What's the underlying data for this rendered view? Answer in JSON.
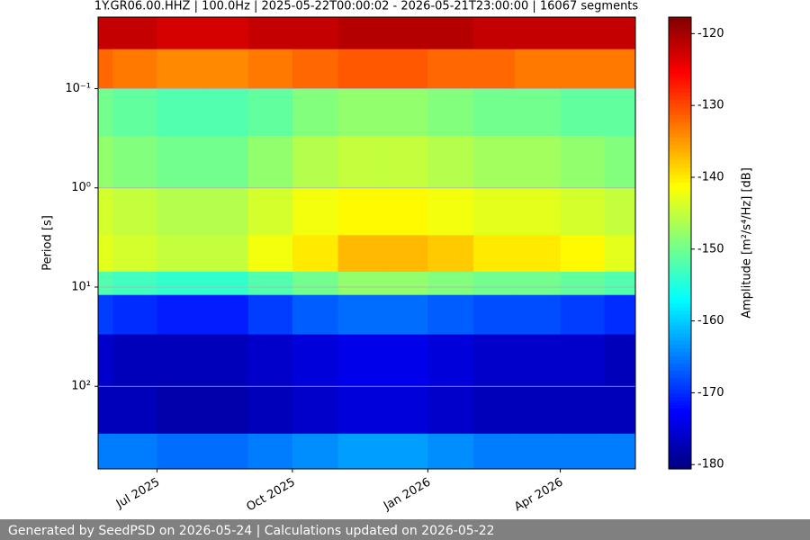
{
  "chart_data": {
    "type": "heatmap",
    "title": "1Y.GR06.00.HHZ | 100.0Hz | 2025-05-22T00:00:02 - 2026-05-21T23:00:00 | 16067 segments",
    "ylabel": "Period [s]",
    "colorbar_label": "Amplitude [m²/s⁴/Hz] [dB]",
    "colormap": "jet",
    "ylog": true,
    "grid": true,
    "x": [
      "2025-05",
      "2025-06",
      "2025-07",
      "2025-08",
      "2025-09",
      "2025-10",
      "2025-11",
      "2025-12",
      "2026-01",
      "2026-02",
      "2026-03",
      "2026-04",
      "2026-05"
    ],
    "xlim": [
      "2025-05-22",
      "2026-05-22"
    ],
    "xticks": [
      {
        "value": "2025-07",
        "label": "Jul 2025"
      },
      {
        "value": "2025-10",
        "label": "Oct 2025"
      },
      {
        "value": "2026-01",
        "label": "Jan 2026"
      },
      {
        "value": "2026-04",
        "label": "Apr 2026"
      }
    ],
    "ylim": [
      0.019,
      680
    ],
    "yticks": [
      {
        "value": 0.1,
        "label": "10⁻¹"
      },
      {
        "value": 1,
        "label": "10⁰"
      },
      {
        "value": 10,
        "label": "10¹"
      },
      {
        "value": 100,
        "label": "10²"
      }
    ],
    "period_edges": [
      0.019,
      0.04,
      0.1,
      0.3,
      1,
      3,
      7,
      12,
      30,
      100,
      300,
      680
    ],
    "z": [
      [
        -122,
        -122,
        -123,
        -123,
        -122,
        -122,
        -121,
        -121,
        -121,
        -122,
        -122,
        -122,
        -122
      ],
      [
        -132,
        -133,
        -134,
        -134,
        -133,
        -132,
        -131,
        -131,
        -132,
        -132,
        -133,
        -133,
        -133
      ],
      [
        -150,
        -151,
        -152,
        -152,
        -151,
        -149,
        -148,
        -148,
        -149,
        -150,
        -150,
        -151,
        -151
      ],
      [
        -148,
        -149,
        -150,
        -150,
        -148,
        -146,
        -145,
        -145,
        -146,
        -147,
        -147,
        -148,
        -149
      ],
      [
        -144,
        -145,
        -146,
        -146,
        -144,
        -142,
        -141,
        -141,
        -142,
        -143,
        -143,
        -144,
        -145
      ],
      [
        -143,
        -144,
        -145,
        -145,
        -142,
        -140,
        -137,
        -137,
        -138,
        -140,
        -140,
        -141,
        -143
      ],
      [
        -152,
        -153,
        -154,
        -154,
        -152,
        -150,
        -148,
        -148,
        -149,
        -150,
        -150,
        -151,
        -152
      ],
      [
        -169,
        -170,
        -171,
        -171,
        -169,
        -167,
        -166,
        -166,
        -167,
        -168,
        -168,
        -169,
        -170
      ],
      [
        -176,
        -177,
        -177,
        -177,
        -176,
        -175,
        -174,
        -174,
        -175,
        -176,
        -176,
        -176,
        -177
      ],
      [
        -177,
        -177,
        -178,
        -178,
        -177,
        -176,
        -175,
        -175,
        -176,
        -177,
        -177,
        -177,
        -177
      ],
      [
        -165,
        -165,
        -166,
        -166,
        -165,
        -164,
        -163,
        -163,
        -164,
        -165,
        -165,
        -165,
        -165
      ]
    ],
    "clim": [
      -180.6,
      -117.7
    ],
    "cticks": [
      -180,
      -170,
      -160,
      -150,
      -140,
      -130,
      -120
    ],
    "footer": "Generated by SeedPSD on 2026-05-24 | Calculations updated on 2026-05-22"
  }
}
